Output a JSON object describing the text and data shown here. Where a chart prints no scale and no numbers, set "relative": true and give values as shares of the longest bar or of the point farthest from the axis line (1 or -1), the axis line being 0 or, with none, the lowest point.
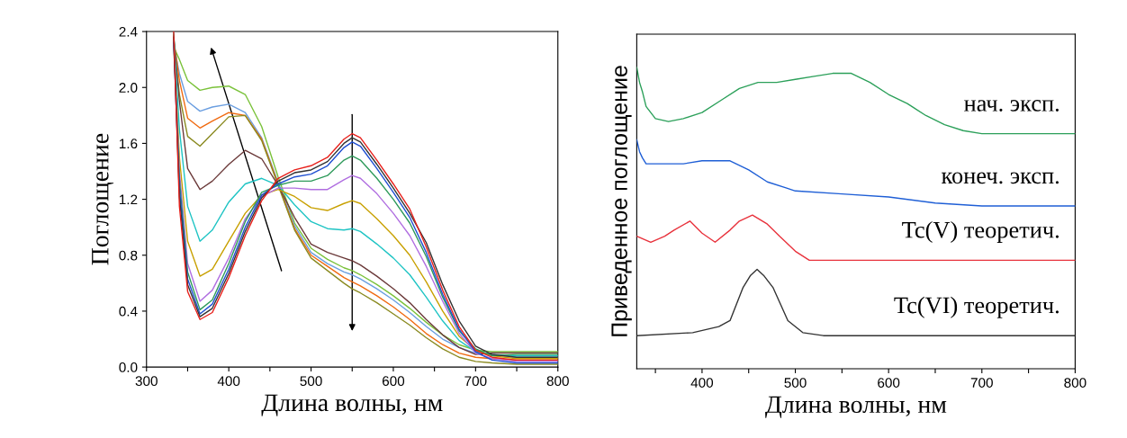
{
  "chart_data": [
    {
      "type": "line",
      "xlabel": "Длина волны, нм",
      "ylabel": "Поглощение",
      "x": [
        333,
        340,
        350,
        365,
        380,
        400,
        420,
        440,
        460,
        480,
        500,
        520,
        540,
        550,
        560,
        580,
        600,
        620,
        640,
        660,
        680,
        700,
        720,
        750,
        800
      ],
      "xlim": [
        300,
        800
      ],
      "xticks": [
        300,
        {
          "value": 350,
          "label": null
        },
        400,
        {
          "value": 450,
          "label": null
        },
        500,
        {
          "value": 550,
          "label": null
        },
        600,
        {
          "value": 650,
          "label": null
        },
        700,
        {
          "value": 750,
          "label": null
        },
        800
      ],
      "ylim": [
        0,
        2.4
      ],
      "yticks": [
        {
          "value": 0,
          "label": "0.0"
        },
        {
          "value": 0.4,
          "label": "0.4"
        },
        {
          "value": 0.8,
          "label": "0.8"
        },
        {
          "value": 1.2,
          "label": "1.2"
        },
        {
          "value": 1.6,
          "label": "1.6"
        },
        {
          "value": 2.0,
          "label": "2.0"
        },
        {
          "value": 2.4,
          "label": "2.4"
        }
      ],
      "grid": false,
      "legend": false,
      "marker": "none",
      "line_style": "solid",
      "series": [
        {
          "color": "#e8211c",
          "values": [
            2.4,
            1.15,
            0.54,
            0.34,
            0.39,
            0.64,
            0.94,
            1.19,
            1.35,
            1.41,
            1.44,
            1.5,
            1.63,
            1.67,
            1.64,
            1.48,
            1.31,
            1.13,
            0.86,
            0.55,
            0.29,
            0.12,
            0.07,
            0.05,
            0.05
          ]
        },
        {
          "color": "#333333",
          "values": [
            2.36,
            1.22,
            0.59,
            0.36,
            0.42,
            0.67,
            0.97,
            1.21,
            1.33,
            1.39,
            1.41,
            1.47,
            1.6,
            1.64,
            1.61,
            1.45,
            1.28,
            1.1,
            0.89,
            0.59,
            0.33,
            0.15,
            0.09,
            0.07,
            0.07
          ]
        },
        {
          "color": "#1f4fd1",
          "values": [
            2.32,
            1.28,
            0.63,
            0.38,
            0.45,
            0.7,
            1.0,
            1.23,
            1.31,
            1.36,
            1.38,
            1.44,
            1.57,
            1.61,
            1.58,
            1.42,
            1.25,
            1.07,
            0.82,
            0.52,
            0.27,
            0.11,
            0.05,
            0.03,
            0.03
          ]
        },
        {
          "color": "#2e9a5a",
          "values": [
            2.38,
            1.34,
            0.68,
            0.41,
            0.48,
            0.74,
            1.04,
            1.25,
            1.3,
            1.33,
            1.33,
            1.37,
            1.48,
            1.51,
            1.48,
            1.35,
            1.2,
            1.03,
            0.79,
            0.5,
            0.26,
            0.13,
            0.08,
            0.09,
            0.09
          ]
        },
        {
          "color": "#b06ee0",
          "values": [
            2.34,
            1.4,
            0.74,
            0.47,
            0.55,
            0.78,
            1.06,
            1.22,
            1.28,
            1.28,
            1.27,
            1.27,
            1.34,
            1.37,
            1.35,
            1.24,
            1.1,
            0.94,
            0.72,
            0.47,
            0.24,
            0.1,
            0.06,
            0.04,
            0.04
          ]
        },
        {
          "color": "#c8a000",
          "values": [
            2.3,
            1.5,
            0.9,
            0.65,
            0.7,
            0.9,
            1.1,
            1.23,
            1.27,
            1.22,
            1.14,
            1.12,
            1.17,
            1.19,
            1.17,
            1.06,
            0.94,
            0.8,
            0.61,
            0.4,
            0.22,
            0.12,
            0.08,
            0.06,
            0.06
          ]
        },
        {
          "color": "#1fc4c4",
          "values": [
            2.39,
            1.7,
            1.15,
            0.9,
            0.98,
            1.18,
            1.31,
            1.35,
            1.3,
            1.16,
            1.04,
            0.99,
            0.98,
            0.99,
            0.97,
            0.88,
            0.78,
            0.66,
            0.5,
            0.33,
            0.19,
            0.11,
            0.09,
            0.08,
            0.08
          ]
        },
        {
          "color": "#6b3a3a",
          "values": [
            2.37,
            1.9,
            1.42,
            1.27,
            1.33,
            1.45,
            1.55,
            1.49,
            1.3,
            1.07,
            0.88,
            0.82,
            0.78,
            0.76,
            0.73,
            0.65,
            0.56,
            0.46,
            0.34,
            0.23,
            0.14,
            0.09,
            0.1,
            0.1,
            0.1
          ]
        },
        {
          "color": "#8a8a20",
          "values": [
            2.33,
            1.95,
            1.65,
            1.58,
            1.67,
            1.79,
            1.8,
            1.62,
            1.3,
            0.98,
            0.78,
            0.69,
            0.6,
            0.56,
            0.53,
            0.46,
            0.38,
            0.3,
            0.21,
            0.13,
            0.07,
            0.04,
            0.03,
            0.02,
            0.02
          ]
        },
        {
          "color": "#f06a10",
          "values": [
            2.35,
            2.05,
            1.78,
            1.71,
            1.76,
            1.82,
            1.8,
            1.63,
            1.31,
            0.99,
            0.8,
            0.72,
            0.64,
            0.61,
            0.58,
            0.51,
            0.43,
            0.34,
            0.24,
            0.16,
            0.1,
            0.07,
            0.06,
            0.05,
            0.05
          ]
        },
        {
          "color": "#6a9ee0",
          "values": [
            2.31,
            2.1,
            1.9,
            1.83,
            1.86,
            1.88,
            1.82,
            1.64,
            1.32,
            1.01,
            0.82,
            0.74,
            0.68,
            0.66,
            0.63,
            0.56,
            0.48,
            0.39,
            0.29,
            0.2,
            0.14,
            0.1,
            0.09,
            0.07,
            0.07
          ]
        },
        {
          "color": "#7ac23a",
          "values": [
            2.29,
            2.2,
            2.05,
            1.98,
            2.0,
            2.01,
            1.95,
            1.72,
            1.36,
            1.03,
            0.85,
            0.77,
            0.71,
            0.69,
            0.66,
            0.59,
            0.51,
            0.42,
            0.32,
            0.23,
            0.16,
            0.12,
            0.11,
            0.11,
            0.11
          ]
        }
      ]
    },
    {
      "type": "line",
      "xlabel": "Длина волны, нм",
      "ylabel": "Приведенное поглощение",
      "relative": true,
      "xlim": [
        330,
        800
      ],
      "xticks": [
        {
          "value": 350,
          "label": null
        },
        400,
        {
          "value": 450,
          "label": null
        },
        500,
        {
          "value": 550,
          "label": null
        },
        600,
        {
          "value": 650,
          "label": null
        },
        700,
        {
          "value": 750,
          "label": null
        },
        800
      ],
      "grid": false,
      "legend": false,
      "marker": "none",
      "line_style": "solid",
      "series": [
        {
          "name": "нач. эксп.",
          "color": "#2ca05a",
          "x": [
            330,
            333,
            336,
            340,
            350,
            364,
            380,
            400,
            420,
            440,
            460,
            480,
            500,
            520,
            540,
            547,
            560,
            580,
            600,
            620,
            640,
            660,
            680,
            700,
            750,
            800
          ],
          "values": [
            1.0,
            0.95,
            0.92,
            0.87,
            0.83,
            0.82,
            0.83,
            0.85,
            0.89,
            0.93,
            0.95,
            0.95,
            0.96,
            0.97,
            0.98,
            0.98,
            0.98,
            0.95,
            0.91,
            0.88,
            0.84,
            0.81,
            0.79,
            0.78,
            0.78,
            0.78
          ]
        },
        {
          "name": "конеч. эксп.",
          "color": "#1f5fd6",
          "x": [
            330,
            333,
            336,
            340,
            360,
            380,
            400,
            410,
            430,
            450,
            470,
            490,
            500,
            550,
            600,
            650,
            700,
            750,
            800
          ],
          "values": [
            0.76,
            0.72,
            0.7,
            0.68,
            0.68,
            0.68,
            0.69,
            0.69,
            0.69,
            0.66,
            0.62,
            0.6,
            0.59,
            0.58,
            0.57,
            0.55,
            0.54,
            0.54,
            0.54
          ]
        },
        {
          "name": "Tc(V) теоретич.",
          "color": "#e8323c",
          "x": [
            330,
            345,
            360,
            370,
            387,
            400,
            414,
            430,
            440,
            454,
            470,
            483,
            500,
            515,
            600,
            800
          ],
          "values": [
            0.44,
            0.42,
            0.44,
            0.46,
            0.49,
            0.45,
            0.42,
            0.46,
            0.49,
            0.51,
            0.48,
            0.44,
            0.39,
            0.36,
            0.36,
            0.36
          ]
        },
        {
          "name": "Tc(VI) теоретич.",
          "color": "#333333",
          "x": [
            330,
            390,
            418,
            430,
            444,
            452,
            459,
            466,
            476,
            492,
            508,
            530,
            800
          ],
          "values": [
            0.11,
            0.12,
            0.14,
            0.16,
            0.27,
            0.31,
            0.33,
            0.31,
            0.27,
            0.16,
            0.12,
            0.11,
            0.11
          ]
        }
      ]
    }
  ]
}
